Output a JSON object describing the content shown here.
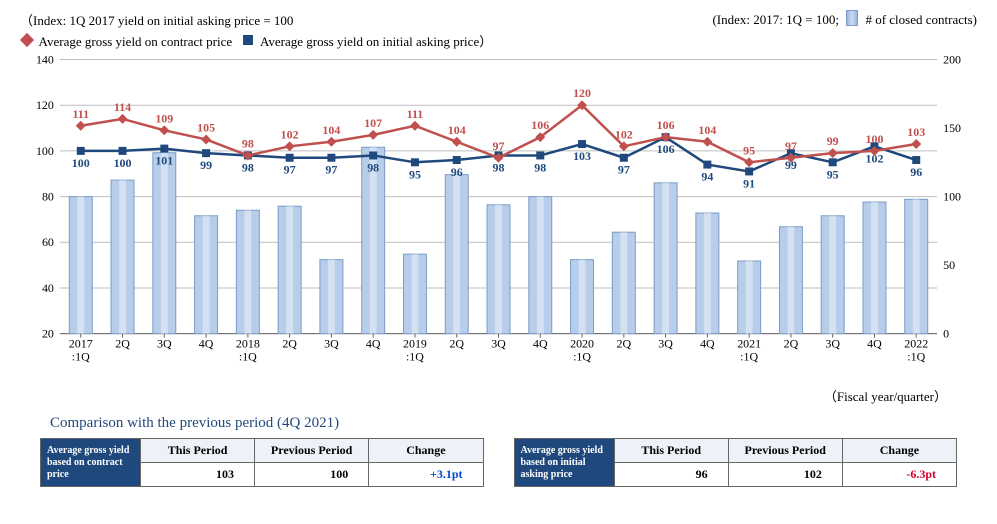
{
  "top_left_note": "（Index: 1Q 2017 yield on initial asking price = 100",
  "top_right_note": "(Index: 2017: 1Q = 100;",
  "top_right_note_tail": " # of closed contracts)",
  "legend": {
    "contract": "Average gross yield on contract price",
    "asking": "Average gross yield on initial asking price）"
  },
  "fy_label": "（Fiscal year/quarter）",
  "chart": {
    "type": "bar+line",
    "background_color": "#ffffff",
    "grid_color": "#bfbfbf",
    "left_axis": {
      "min": 20,
      "max": 140,
      "ticks": [
        20,
        40,
        60,
        80,
        100,
        120,
        140
      ]
    },
    "right_axis": {
      "min": 0,
      "max": 200,
      "ticks": [
        0,
        50,
        100,
        150,
        200
      ]
    },
    "categories": [
      "2017\n:1Q",
      "2Q",
      "3Q",
      "4Q",
      "2018\n:1Q",
      "2Q",
      "3Q",
      "4Q",
      "2019\n:1Q",
      "2Q",
      "3Q",
      "4Q",
      "2020\n:1Q",
      "2Q",
      "3Q",
      "4Q",
      "2021\n:1Q",
      "2Q",
      "3Q",
      "4Q",
      "2022\n:1Q"
    ],
    "bars": {
      "color_fill": "#b7cdea",
      "color_edge": "#7a9cc6",
      "width": 0.55,
      "values_right_axis": [
        100,
        112,
        132,
        86,
        90,
        93,
        54,
        136,
        58,
        116,
        94,
        100,
        54,
        74,
        110,
        88,
        53,
        78,
        86,
        96,
        98
      ]
    },
    "line_contract": {
      "color": "#c0504d",
      "width": 2.5,
      "marker": "diamond",
      "values_left_axis": [
        111,
        114,
        109,
        105,
        98,
        102,
        104,
        107,
        111,
        104,
        97,
        106,
        120,
        102,
        106,
        104,
        95,
        97,
        99,
        100,
        103
      ]
    },
    "line_asking": {
      "color": "#1f497d",
      "width": 2.5,
      "marker": "square",
      "values_left_axis": [
        100,
        100,
        101,
        99,
        98,
        97,
        97,
        98,
        95,
        96,
        98,
        98,
        103,
        97,
        106,
        94,
        91,
        99,
        95,
        102,
        96
      ]
    }
  },
  "comparison_title": "Comparison with the previous period (4Q 2021)",
  "table_left": {
    "row_head": "Average gross yield based on contract price",
    "headers": [
      "This Period",
      "Previous Period",
      "Change"
    ],
    "values": [
      "103",
      "100",
      "+3.1pt"
    ],
    "change_class": "pos"
  },
  "table_right": {
    "row_head": "Average gross yield based on initial asking price",
    "headers": [
      "This Period",
      "Previous Period",
      "Change"
    ],
    "values": [
      "96",
      "102",
      "-6.3pt"
    ],
    "change_class": "neg"
  }
}
